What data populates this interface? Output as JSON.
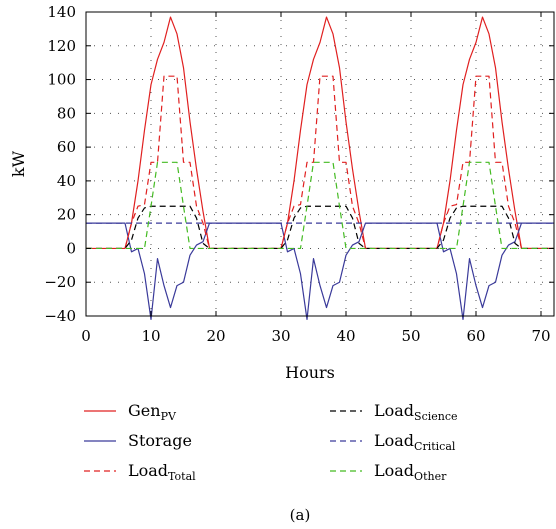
{
  "chart_data": {
    "type": "line",
    "title": "",
    "xlabel": "Hours",
    "ylabel": "kW",
    "xlim": [
      0,
      72
    ],
    "ylim": [
      -40,
      140
    ],
    "xticks": [
      0,
      10,
      20,
      30,
      40,
      50,
      60,
      70
    ],
    "yticks": [
      -40,
      -20,
      0,
      20,
      40,
      60,
      80,
      100,
      120,
      140
    ],
    "grid": true,
    "legend_position": "bottom",
    "caption": "(a)",
    "series": [
      {
        "name": "Gen",
        "name_sub": "PV",
        "color": "#e02020",
        "dash": "solid",
        "x": [
          0,
          6,
          7,
          8,
          9,
          10,
          11,
          12,
          13,
          14,
          15,
          16,
          17,
          18,
          19,
          30,
          31,
          32,
          33,
          34,
          35,
          36,
          37,
          38,
          39,
          40,
          41,
          42,
          43,
          54,
          55,
          56,
          57,
          58,
          59,
          60,
          61,
          62,
          63,
          64,
          65,
          66,
          67,
          72
        ],
        "y": [
          0,
          0,
          15,
          40,
          70,
          97,
          112,
          122,
          137,
          127,
          107,
          75,
          47,
          22,
          0,
          0,
          15,
          40,
          70,
          97,
          112,
          122,
          137,
          127,
          107,
          75,
          47,
          22,
          0,
          0,
          15,
          40,
          70,
          97,
          112,
          122,
          137,
          127,
          107,
          75,
          47,
          22,
          0,
          0
        ]
      },
      {
        "name": "Storage",
        "name_sub": "",
        "color": "#3a3a9a",
        "dash": "solid",
        "x": [
          0,
          6,
          7,
          8,
          9,
          10,
          11,
          12,
          13,
          14,
          15,
          16,
          17,
          18,
          19,
          30,
          31,
          32,
          33,
          34,
          35,
          36,
          37,
          38,
          39,
          40,
          41,
          42,
          43,
          54,
          55,
          56,
          57,
          58,
          59,
          60,
          61,
          62,
          63,
          64,
          65,
          66,
          67,
          72
        ],
        "y": [
          15,
          15,
          -2,
          0,
          -15,
          -42,
          -6,
          -22,
          -35,
          -22,
          -20,
          -4,
          2,
          4,
          15,
          15,
          -2,
          0,
          -15,
          -42,
          -6,
          -22,
          -35,
          -22,
          -20,
          -4,
          2,
          4,
          15,
          15,
          -2,
          0,
          -15,
          -42,
          -6,
          -22,
          -35,
          -22,
          -20,
          -4,
          2,
          4,
          15,
          15
        ]
      },
      {
        "name": "Load",
        "name_sub": "Total",
        "color": "#e02020",
        "dash": "6,4",
        "x": [
          0,
          6,
          7,
          8,
          9,
          10,
          11,
          12,
          13,
          14,
          15,
          16,
          17,
          18,
          19,
          30,
          31,
          32,
          33,
          34,
          35,
          36,
          37,
          38,
          39,
          40,
          41,
          42,
          43,
          54,
          55,
          56,
          57,
          58,
          59,
          60,
          61,
          62,
          63,
          64,
          65,
          66,
          67,
          72
        ],
        "y": [
          0,
          0,
          15,
          25,
          26,
          51,
          51,
          102,
          102,
          102,
          51,
          51,
          25,
          15,
          0,
          0,
          15,
          25,
          26,
          51,
          51,
          102,
          102,
          102,
          51,
          51,
          25,
          15,
          0,
          0,
          15,
          25,
          26,
          51,
          51,
          102,
          102,
          102,
          51,
          51,
          25,
          15,
          0,
          0
        ]
      },
      {
        "name": "Load",
        "name_sub": "Science",
        "color": "#000000",
        "dash": "6,4",
        "x": [
          0,
          6,
          7,
          8,
          9,
          10,
          11,
          12,
          13,
          14,
          15,
          16,
          17,
          18,
          19,
          30,
          31,
          32,
          33,
          34,
          35,
          36,
          37,
          38,
          39,
          40,
          41,
          42,
          43,
          54,
          55,
          56,
          57,
          58,
          59,
          60,
          61,
          62,
          63,
          64,
          65,
          66,
          67,
          72
        ],
        "y": [
          0,
          0,
          5,
          18,
          24,
          25,
          25,
          25,
          25,
          25,
          25,
          25,
          18,
          3,
          0,
          0,
          5,
          18,
          24,
          25,
          25,
          25,
          25,
          25,
          25,
          25,
          18,
          3,
          0,
          0,
          5,
          18,
          24,
          25,
          25,
          25,
          25,
          25,
          25,
          25,
          18,
          3,
          0,
          0
        ]
      },
      {
        "name": "Load",
        "name_sub": "Critical",
        "color": "#3a3a9a",
        "dash": "6,4",
        "x": [
          0,
          72
        ],
        "y": [
          15,
          15
        ]
      },
      {
        "name": "Load",
        "name_sub": "Other",
        "color": "#44bb22",
        "dash": "6,4",
        "x": [
          0,
          8,
          9,
          10,
          11,
          12,
          13,
          14,
          15,
          16,
          17,
          32,
          33,
          34,
          35,
          36,
          37,
          38,
          39,
          40,
          41,
          56,
          57,
          58,
          59,
          60,
          61,
          62,
          63,
          64,
          65,
          72
        ],
        "y": [
          0,
          0,
          0,
          25,
          51,
          51,
          51,
          51,
          25,
          0,
          0,
          0,
          0,
          25,
          51,
          51,
          51,
          51,
          25,
          0,
          0,
          0,
          0,
          25,
          51,
          51,
          51,
          51,
          25,
          0,
          0,
          0
        ]
      }
    ]
  }
}
